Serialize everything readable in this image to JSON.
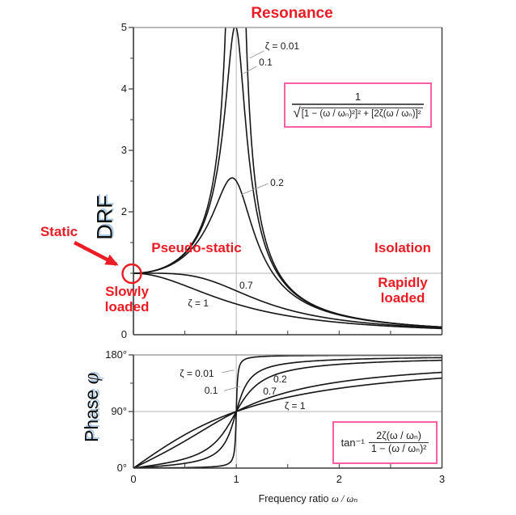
{
  "colors": {
    "annotation_red": "#ec1c24",
    "formula_box_pink": "#f95fa5",
    "grid_gray": "#c3c3c3",
    "axis_dark": "#3a3a3a",
    "curve_black": "#161616",
    "label_glow_blue": "#aecbe8"
  },
  "annotations": {
    "resonance": "Resonance",
    "static": "Static",
    "pseudo_static": "Pseudo-static",
    "isolation": "Isolation",
    "slowly_loaded": "Slowly\nloaded",
    "rapidly_loaded": "Rapidly\nloaded"
  },
  "axis_labels": {
    "drf": "DRF",
    "phase_text": "Phase ",
    "phase_symbol": "φ",
    "x_text": "Frequency ratio ",
    "x_symbol": "ω / ωₙ"
  },
  "formulas": {
    "drf": {
      "numerator": "1",
      "sqrt": "√",
      "radicand": "[1 − (ω / ωₙ)²]² + [2ζ(ω / ωₙ)]²"
    },
    "phase": {
      "prefix": "tan⁻¹",
      "numerator": "2ζ(ω / ωₙ)",
      "denominator": "1 − (ω / ωₙ)²"
    }
  },
  "chart_data": [
    {
      "id": "drf",
      "type": "line",
      "title": "Dynamic response factor vs frequency ratio",
      "xlabel": "",
      "ylabel": "DRF",
      "x_range": [
        0,
        3
      ],
      "y_range": [
        0,
        5
      ],
      "clip_max": 5,
      "grid": "on",
      "legend_position": "inline-curve-labels",
      "y_tick_labels": [
        {
          "value": 5,
          "label": "5"
        },
        {
          "value": 4,
          "label": "4"
        },
        {
          "value": 3,
          "label": "3"
        },
        {
          "value": 2,
          "label": "2"
        },
        {
          "value": 0,
          "label": "0"
        }
      ],
      "x_tick_labels": [],
      "minor_tick_step": {
        "x": 0.5,
        "y": 0.5
      },
      "gridlines": {
        "vertical_x": [
          1
        ],
        "horizontal_y": [
          1
        ]
      },
      "sample_x": [
        0,
        0.2,
        0.4,
        0.6,
        0.8,
        0.9,
        0.95,
        1,
        1.05,
        1.1,
        1.2,
        1.4,
        1.7,
        2,
        2.5,
        3
      ],
      "series": [
        {
          "zeta": 0.01,
          "label": "ζ = 0.01",
          "label_at": [
            1.28,
            4.7
          ],
          "pointer_from": [
            1.27,
            4.62
          ],
          "pointer_to": [
            1.13,
            4.5
          ],
          "values": [
            1,
            1.04,
            1.19,
            1.56,
            2.78,
            5.26,
            10.07,
            50,
            9.76,
            4.76,
            2.27,
            1.04,
            0.53,
            0.33,
            0.19,
            0.13
          ]
        },
        {
          "zeta": 0.1,
          "label": "0.1",
          "label_at": [
            1.22,
            4.44
          ],
          "pointer_from": [
            1.2,
            4.37
          ],
          "pointer_to": [
            1.07,
            4.25
          ],
          "values": [
            1,
            1.04,
            1.19,
            1.54,
            2.54,
            3.82,
            4.68,
            5.0,
            4.28,
            3.29,
            2.0,
            1.0,
            0.52,
            0.33,
            0.19,
            0.12
          ]
        },
        {
          "zeta": 0.2,
          "label": "0.2",
          "label_at": [
            1.33,
            2.47
          ],
          "pointer_from": [
            1.31,
            2.46
          ],
          "pointer_to": [
            1.05,
            2.28
          ],
          "values": [
            1,
            1.04,
            1.17,
            1.46,
            2.08,
            2.46,
            2.55,
            2.5,
            2.31,
            2.05,
            1.54,
            0.9,
            0.5,
            0.32,
            0.19,
            0.12
          ]
        },
        {
          "zeta": 0.7,
          "label": "0.7",
          "label_at": [
            1.03,
            0.8
          ],
          "values": [
            1,
            1.0,
            0.99,
            0.95,
            0.85,
            0.79,
            0.75,
            0.71,
            0.68,
            0.64,
            0.58,
            0.46,
            0.33,
            0.24,
            0.16,
            0.11
          ]
        },
        {
          "zeta": 1,
          "label": "ζ = 1",
          "label_at": [
            0.53,
            0.51
          ],
          "values": [
            1,
            0.96,
            0.86,
            0.74,
            0.61,
            0.55,
            0.53,
            0.5,
            0.48,
            0.45,
            0.41,
            0.34,
            0.26,
            0.2,
            0.14,
            0.1
          ]
        }
      ]
    },
    {
      "id": "phase",
      "type": "line",
      "title": "Phase angle vs frequency ratio",
      "xlabel": "Frequency ratio ω / ωₙ",
      "ylabel": "Phase φ",
      "x_range": [
        0,
        3
      ],
      "y_range": [
        0,
        180
      ],
      "grid": "on",
      "legend_position": "inline-curve-labels",
      "y_tick_labels": [
        {
          "value": 180,
          "label": "180°"
        },
        {
          "value": 90,
          "label": "90°"
        },
        {
          "value": 0,
          "label": "0°"
        }
      ],
      "x_tick_labels": [
        {
          "value": 0,
          "label": "0"
        },
        {
          "value": 1,
          "label": "1"
        },
        {
          "value": 2,
          "label": "2"
        },
        {
          "value": 3,
          "label": "3"
        }
      ],
      "minor_tick_step": {
        "x": 0.5,
        "y": 45
      },
      "gridlines": {
        "vertical_x": [
          1
        ],
        "horizontal_y": [
          90
        ]
      },
      "sample_x": [
        0,
        0.2,
        0.4,
        0.6,
        0.8,
        0.9,
        1,
        1.1,
        1.2,
        1.5,
        2,
        2.5,
        3
      ],
      "series": [
        {
          "zeta": 0.01,
          "label": "ζ = 0.01",
          "label_at": [
            0.45,
            150.5
          ],
          "pointer_from": [
            0.86,
            152
          ],
          "pointer_to": [
            0.98,
            156
          ],
          "values": [
            0,
            0.2,
            0.5,
            1.1,
            2.5,
            5.4,
            90,
            174.0,
            176.9,
            178.6,
            179.2,
            179.5,
            179.6
          ]
        },
        {
          "zeta": 0.1,
          "label": "0.1",
          "label_at": [
            0.69,
            124
          ],
          "pointer_from": [
            0.88,
            123
          ],
          "pointer_to": [
            1.04,
            130
          ],
          "values": [
            0,
            2.4,
            5.4,
            10.6,
            24.0,
            43.4,
            90,
            133.7,
            151.4,
            166.5,
            172.4,
            174.6,
            175.7
          ]
        },
        {
          "zeta": 0.2,
          "label": "0.2",
          "label_at": [
            1.36,
            141
          ],
          "values": [
            0,
            4.8,
            10.8,
            20.6,
            41.6,
            62.2,
            90,
            115.5,
            132.5,
            154.4,
            165.1,
            169.2,
            171.5
          ]
        },
        {
          "zeta": 0.7,
          "label": "0.7",
          "label_at": [
            1.26,
            122.5
          ],
          "values": [
            0,
            16.3,
            33.7,
            52.7,
            72.2,
            81.4,
            90,
            97.8,
            104.7,
            120.8,
            137.0,
            146.3,
            152.3
          ]
        },
        {
          "zeta": 1,
          "label": "ζ = 1",
          "label_at": [
            1.47,
            99.5
          ],
          "values": [
            0,
            22.6,
            43.6,
            61.9,
            77.3,
            84.0,
            90,
            95.7,
            100.4,
            112.6,
            126.9,
            136.4,
            143.1
          ]
        }
      ]
    }
  ]
}
